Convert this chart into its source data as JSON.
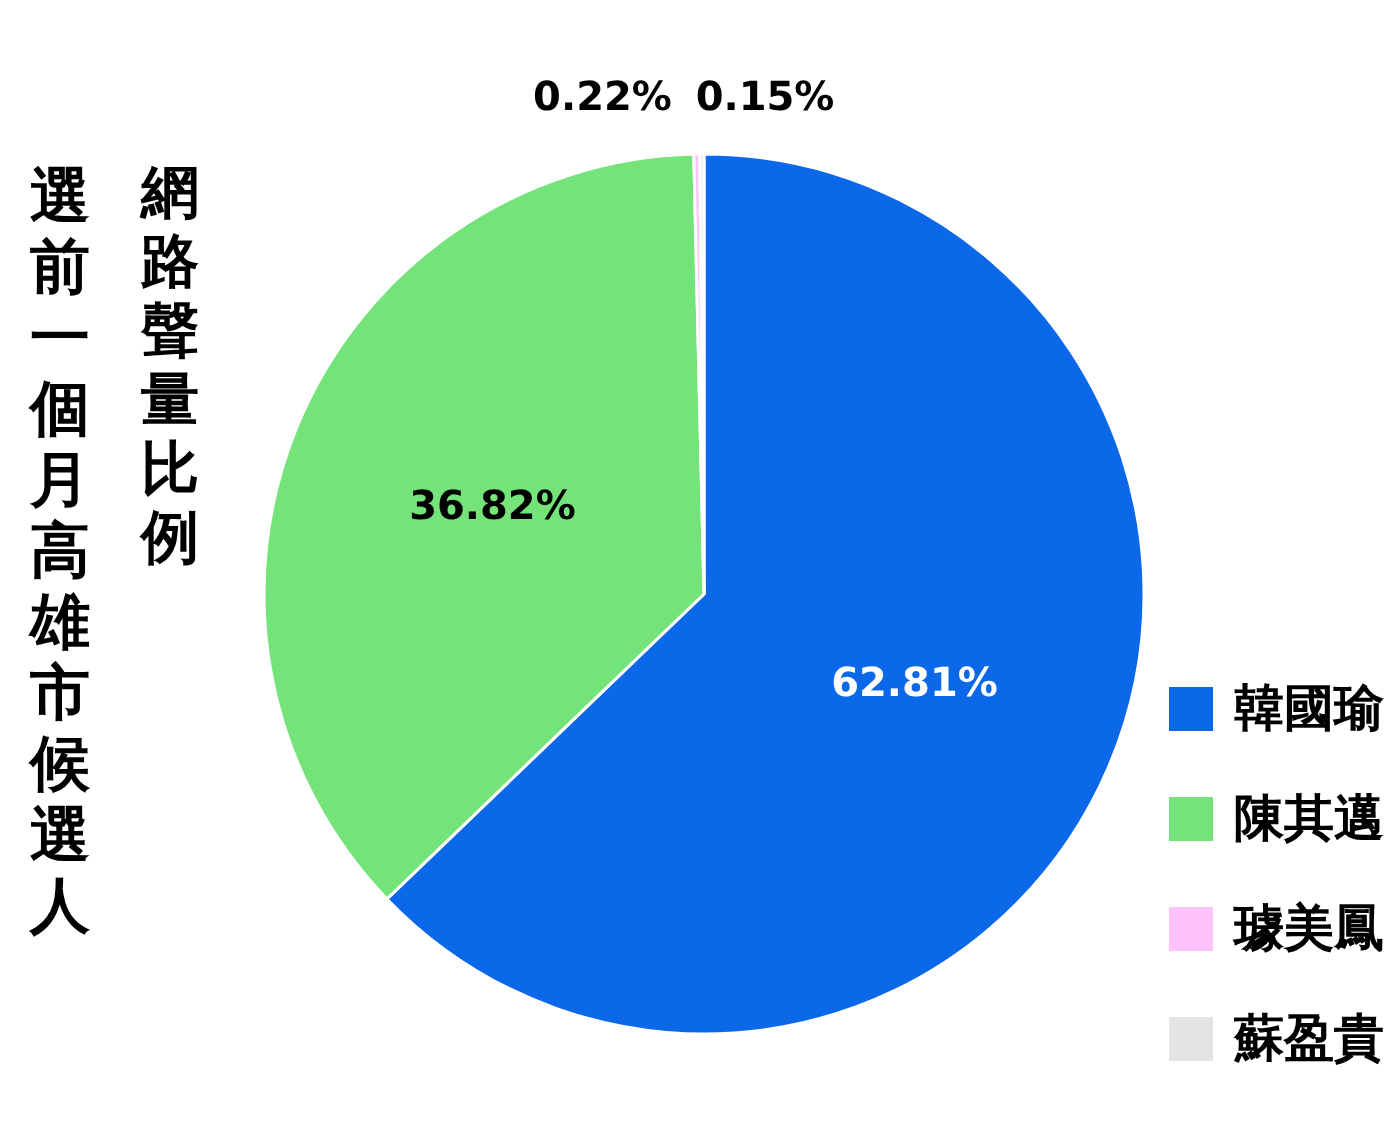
{
  "chart_data": {
    "type": "pie",
    "title": "選前一個月高雄市候選人",
    "subtitle": "網路聲量比例",
    "categories": [
      "韓國瑜",
      "陳其邁",
      "璩美鳳",
      "蘇盈貴"
    ],
    "values": [
      62.81,
      36.82,
      0.22,
      0.15
    ],
    "colors": [
      "#0b68e8",
      "#73e37a",
      "#ffc2fb",
      "#e4e4e4"
    ],
    "value_labels": [
      "62.81%",
      "36.82%",
      "0.22%",
      "0.15%"
    ],
    "legend": "bottom right"
  }
}
